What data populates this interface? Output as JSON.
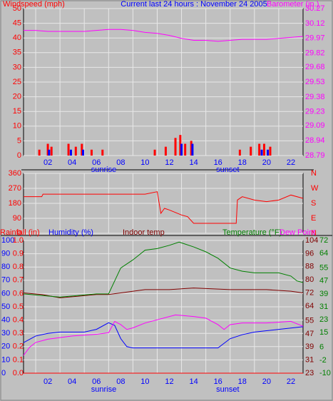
{
  "chart_data": [
    {
      "type": "combo",
      "title": "Current last 24 hours : November 24 2005",
      "ylabel": "Windspeed (mph)",
      "y2label": "Barometer (in.)",
      "xlim": [
        0,
        23
      ],
      "xticks": [
        {
          "value": 2,
          "label": "02"
        },
        {
          "value": 4,
          "label": "04"
        },
        {
          "value": 6,
          "label": "06"
        },
        {
          "value": 8,
          "label": "08"
        },
        10,
        12,
        14,
        16,
        18,
        20,
        22
      ],
      "xgrid": [
        1,
        3,
        5,
        7,
        9,
        11,
        13,
        15,
        17,
        19,
        21
      ],
      "ylim": [
        0,
        50
      ],
      "yticks": [
        0,
        5,
        10,
        15,
        20,
        25,
        30,
        35,
        40,
        45,
        50
      ],
      "ycolor": "#ff0000",
      "y2lim": [
        28.79,
        30.27
      ],
      "y2ticks": [
        28.79,
        28.94,
        29.09,
        29.23,
        29.38,
        29.53,
        29.68,
        29.82,
        29.97,
        30.12,
        30.27
      ],
      "y2color": "#ff00ff",
      "annotations": [
        {
          "text": "sunrise",
          "x": 6.6
        },
        {
          "text": "sunset",
          "x": 16.8
        }
      ],
      "series": [
        {
          "type": "bar",
          "color": "#ff0000",
          "x": [
            1.3,
            2.0,
            2.3,
            3.7,
            4.3,
            4.8,
            5.6,
            6.5,
            10.8,
            11.7,
            12.5,
            12.9,
            13.3,
            13.8,
            17.8,
            18.7,
            19.4,
            19.8,
            20.3
          ],
          "values": [
            2,
            4,
            3,
            4,
            3,
            4,
            2,
            2,
            2,
            3,
            6,
            7,
            4,
            5,
            2,
            3,
            4,
            4,
            3
          ]
        },
        {
          "type": "bar",
          "color": "#0000ff",
          "x": [
            2.1,
            3.9,
            4.9,
            13.0,
            13.9,
            19.6,
            20.1
          ],
          "values": [
            2,
            2,
            2,
            4,
            4,
            2,
            2
          ]
        },
        {
          "type": "line",
          "axis": "y2",
          "color": "#ff00ff",
          "x": [
            0,
            1,
            2,
            3,
            4,
            5,
            6,
            7,
            8,
            9,
            10,
            11,
            12,
            13,
            14,
            15,
            16,
            17,
            18,
            19,
            20,
            21,
            22,
            23
          ],
          "values": [
            30.05,
            30.05,
            30.04,
            30.04,
            30.04,
            30.04,
            30.05,
            30.06,
            30.06,
            30.05,
            30.03,
            30.02,
            30.0,
            29.97,
            29.95,
            29.95,
            29.94,
            29.95,
            29.96,
            29.96,
            29.96,
            29.97,
            29.98,
            29.99
          ]
        }
      ]
    },
    {
      "type": "combo",
      "xlim": [
        0,
        23
      ],
      "xgrid": [
        1,
        3,
        5,
        7,
        9,
        11,
        13,
        15,
        17,
        19,
        21
      ],
      "ylim": [
        0,
        360
      ],
      "yticks": [
        0,
        90,
        180,
        270,
        360
      ],
      "ycolor": "#ff0000",
      "y2lim": [
        0,
        360
      ],
      "y2ticks": [
        {
          "value": 0,
          "label": "N"
        },
        {
          "value": 90,
          "label": "E"
        },
        {
          "value": 180,
          "label": "S"
        },
        {
          "value": 270,
          "label": "W"
        },
        {
          "value": 360,
          "label": "N"
        }
      ],
      "y2color": "#ff0000",
      "series": [
        {
          "type": "line",
          "color": "#ff0000",
          "x": [
            0,
            1.5,
            1.6,
            2.0,
            10.0,
            11.0,
            11.3,
            11.6,
            12.0,
            12.5,
            13.0,
            13.5,
            14.0,
            15.0,
            17.5,
            17.6,
            18.0,
            19.0,
            20.0,
            21.0,
            22.0,
            23.0
          ],
          "values": [
            220,
            220,
            235,
            235,
            235,
            250,
            120,
            150,
            140,
            125,
            110,
            100,
            60,
            60,
            60,
            200,
            220,
            200,
            190,
            200,
            230,
            210
          ]
        }
      ]
    },
    {
      "type": "combo",
      "xlim": [
        0,
        23
      ],
      "xticks": [
        {
          "value": 2,
          "label": "02"
        },
        {
          "value": 4,
          "label": "04"
        },
        {
          "value": 6,
          "label": "06"
        },
        {
          "value": 8,
          "label": "08"
        },
        10,
        12,
        14,
        16,
        18,
        20,
        22
      ],
      "xgrid": [
        1,
        3,
        5,
        7,
        9,
        11,
        13,
        15,
        17,
        19,
        21
      ],
      "ylim": [
        0,
        1
      ],
      "yticks": [
        {
          "value": 0,
          "label": "0.0"
        },
        0.1,
        0.2,
        0.3,
        0.4,
        0.5,
        0.6,
        0.7,
        0.8,
        0.9,
        {
          "value": 1,
          "label": "1.0"
        }
      ],
      "ycolor": "#ff0000",
      "y2lim": [
        0,
        100
      ],
      "y2ticks": [
        0,
        10,
        20,
        30,
        40,
        50,
        60,
        70,
        80,
        90,
        100
      ],
      "y2color": "#0000ff",
      "y3lim": [
        23,
        104
      ],
      "y3ticks": [
        23,
        31,
        39,
        47,
        55,
        64,
        72,
        80,
        88,
        96,
        104
      ],
      "y3color": "#800000",
      "y4lim": [
        -10,
        72
      ],
      "y4ticks": [
        -10,
        -2,
        6,
        15,
        23,
        31,
        39,
        47,
        55,
        64,
        72
      ],
      "y4color": "#008000",
      "annotations": [
        {
          "text": "sunrise",
          "x": 6.6
        },
        {
          "text": "sunset",
          "x": 16.8
        }
      ],
      "series": [
        {
          "name": "Rainfall (in)",
          "type": "line",
          "color": "#ff0000",
          "x": [
            0,
            23
          ],
          "values": [
            0,
            0
          ]
        },
        {
          "name": "Humidity (%)",
          "type": "line",
          "axis": "y2",
          "color": "#0000ff",
          "x": [
            0,
            1,
            2,
            3,
            4,
            5,
            6,
            7,
            7.5,
            8,
            8.5,
            9,
            12,
            16,
            17,
            18,
            19,
            20,
            21,
            22,
            23
          ],
          "values": [
            23,
            28,
            30,
            31,
            31,
            31,
            33,
            38,
            36,
            26,
            20,
            19,
            19,
            19,
            26,
            29,
            31,
            32,
            33,
            34,
            35
          ]
        },
        {
          "name": "Indoor temp",
          "type": "line",
          "axis": "y3",
          "color": "#800000",
          "x": [
            0,
            1.5,
            3,
            4.5,
            6,
            7,
            8,
            10,
            12,
            14,
            17,
            20,
            22,
            23
          ],
          "values": [
            72,
            71,
            69,
            70,
            71,
            71,
            72,
            74,
            74,
            75,
            74,
            74,
            73,
            72
          ]
        },
        {
          "name": "Temperature (°F)",
          "type": "line",
          "axis": "y4",
          "color": "#008000",
          "x": [
            0,
            1.5,
            3,
            4.5,
            6,
            7,
            7.5,
            8,
            9,
            10,
            11,
            12,
            12.8,
            14,
            15,
            16,
            17,
            18,
            19,
            20,
            21,
            22,
            22.5,
            23
          ],
          "values": [
            39,
            38,
            37,
            38,
            39,
            39,
            47,
            55,
            60,
            66,
            67,
            69,
            71,
            68,
            65,
            61,
            55,
            53,
            52,
            52,
            52,
            50,
            47,
            46
          ]
        },
        {
          "name": "Dew Point",
          "type": "line",
          "axis": "y4",
          "color": "#ff00ff",
          "x": [
            0,
            0.5,
            1,
            2,
            4,
            6,
            7,
            7.5,
            8,
            8.5,
            9,
            10,
            12.5,
            14,
            15,
            16,
            16.5,
            17,
            18,
            20,
            22,
            23
          ],
          "values": [
            1,
            6,
            9,
            11,
            13,
            14,
            15,
            22,
            20,
            17,
            18,
            21,
            26,
            25,
            24,
            20,
            17,
            20,
            21,
            21,
            22,
            19
          ]
        }
      ]
    }
  ]
}
